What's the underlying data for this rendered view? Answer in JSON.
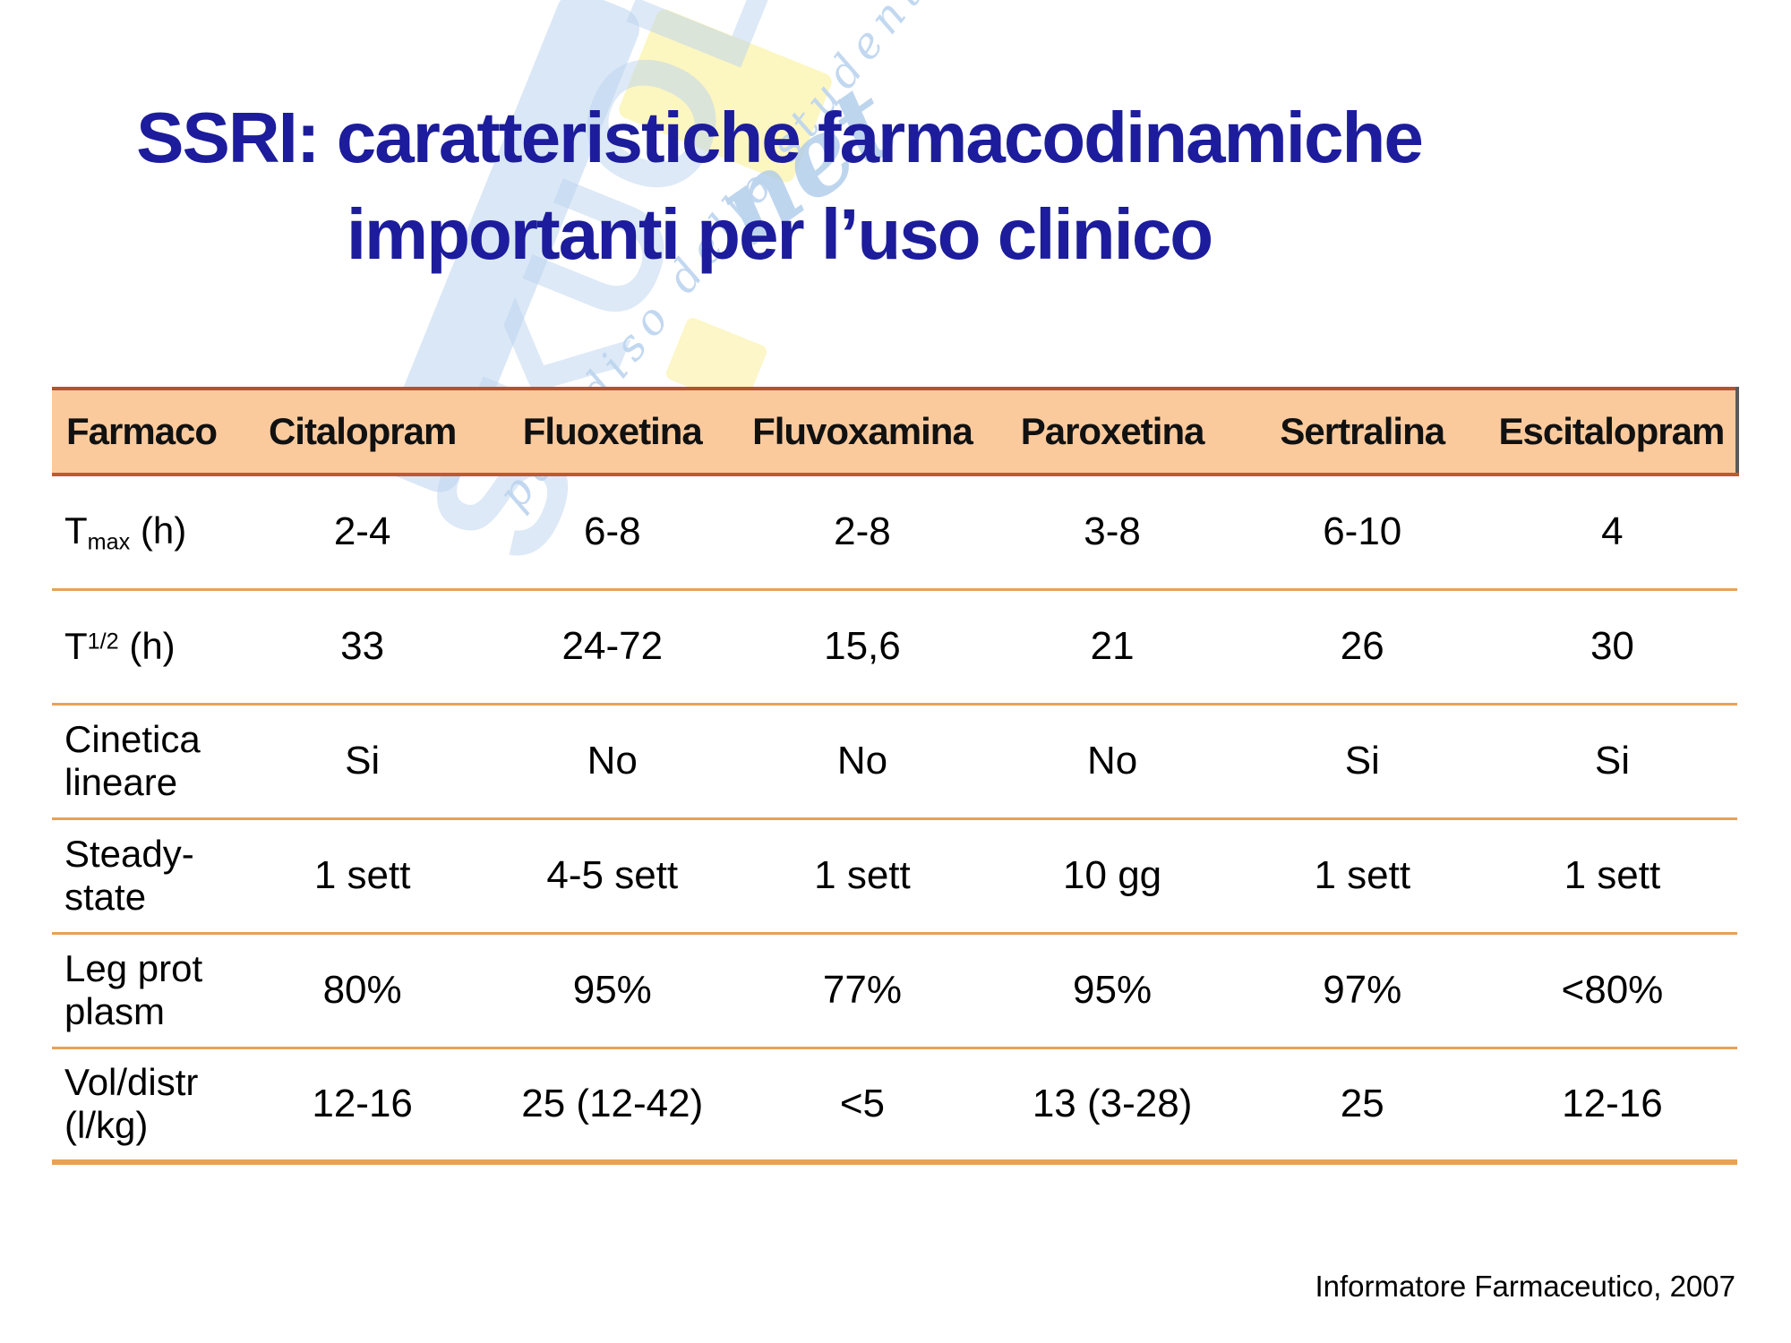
{
  "title": "SSRI: caratteristiche farmacodinamiche\nimportanti per l’uso clinico",
  "source": "Informatore Farmaceutico, 2007",
  "watermark": {
    "brand": "SKUOLA",
    "net": "net",
    "tagline": "paradiso dello studente"
  },
  "colors": {
    "title_navy": "#1C1C9C",
    "header_bg": "#FBCA9C",
    "row_line": "#E8A254",
    "header_top_line": "#B5532B",
    "header_shadow": "#5A5A5A",
    "header_bottom_line": "#C2582E",
    "watermark_blue": "#BCD4EF",
    "watermark_yellow": "#FCF5BE"
  },
  "table": {
    "columns": [
      "Farmaco",
      "Citalopram",
      "Fluoxetina",
      "Fluvoxamina",
      "Paroxetina",
      "Sertralina",
      "Escitalopram"
    ],
    "rows": [
      {
        "label": [
          {
            "t": "T"
          },
          {
            "sub": "max"
          },
          {
            "t": " (h)"
          }
        ],
        "values": [
          "2-4",
          "6-8",
          "2-8",
          "3-8",
          "6-10",
          "4"
        ]
      },
      {
        "label": [
          {
            "t": "T"
          },
          {
            "sup": "1/2"
          },
          {
            "t": " (h)"
          }
        ],
        "values": [
          "33",
          "24-72",
          "15,6",
          "21",
          "26",
          "30"
        ]
      },
      {
        "label": [
          {
            "t": "Cinetica\nlineare"
          }
        ],
        "values": [
          "Si",
          "No",
          "No",
          "No",
          "Si",
          "Si"
        ]
      },
      {
        "label": [
          {
            "t": "Steady-\nstate"
          }
        ],
        "values": [
          "1 sett",
          "4-5 sett",
          "1 sett",
          "10 gg",
          "1 sett",
          "1 sett"
        ]
      },
      {
        "label": [
          {
            "t": "Leg prot\nplasm"
          }
        ],
        "values": [
          "80%",
          "95%",
          "77%",
          "95%",
          "97%",
          "<80%"
        ]
      },
      {
        "label": [
          {
            "t": "Vol/distr\n(l/kg)"
          }
        ],
        "values": [
          "12-16",
          "25 (12-42)",
          "<5",
          "13 (3-28)",
          "25",
          "12-16"
        ]
      }
    ]
  }
}
